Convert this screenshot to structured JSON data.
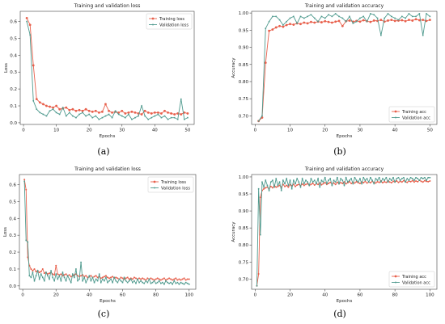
{
  "colors": {
    "training": "#e8604c",
    "validation": "#4f9a8e",
    "axis": "#444444",
    "text": "#222222"
  },
  "chart_data": [
    {
      "type": "line",
      "caption": "(a)",
      "title": "Training and validation loss",
      "xlabel": "Epochs",
      "ylabel": "Loss",
      "xlim": [
        -1,
        52
      ],
      "ylim": [
        -0.01,
        0.66
      ],
      "xticks": [
        0,
        10,
        20,
        30,
        40,
        50
      ],
      "yticks": [
        0.0,
        0.1,
        0.2,
        0.3,
        0.4,
        0.5,
        0.6
      ],
      "ytick_labels": [
        "0.0",
        "0.1",
        "0.2",
        "0.3",
        "0.4",
        "0.5",
        "0.6"
      ],
      "legend_loc": "top-right",
      "x": [
        1,
        2,
        3,
        4,
        5,
        6,
        7,
        8,
        9,
        10,
        11,
        12,
        13,
        14,
        15,
        16,
        17,
        18,
        19,
        20,
        21,
        22,
        23,
        24,
        25,
        26,
        27,
        28,
        29,
        30,
        31,
        32,
        33,
        34,
        35,
        36,
        37,
        38,
        39,
        40,
        41,
        42,
        43,
        44,
        45,
        46,
        47,
        48,
        49,
        50
      ],
      "series": [
        {
          "name": "Training loss",
          "values": [
            0.62,
            0.58,
            0.34,
            0.14,
            0.12,
            0.11,
            0.1,
            0.095,
            0.09,
            0.1,
            0.08,
            0.085,
            0.09,
            0.075,
            0.08,
            0.07,
            0.075,
            0.07,
            0.08,
            0.07,
            0.065,
            0.07,
            0.06,
            0.065,
            0.11,
            0.07,
            0.06,
            0.065,
            0.06,
            0.07,
            0.055,
            0.06,
            0.065,
            0.06,
            0.055,
            0.05,
            0.07,
            0.06,
            0.055,
            0.06,
            0.06,
            0.055,
            0.07,
            0.06,
            0.055,
            0.05,
            0.055,
            0.05,
            0.06,
            0.055
          ]
        },
        {
          "name": "Validation loss",
          "values": [
            0.6,
            0.52,
            0.13,
            0.08,
            0.06,
            0.05,
            0.04,
            0.07,
            0.08,
            0.06,
            0.05,
            0.09,
            0.04,
            0.06,
            0.04,
            0.03,
            0.05,
            0.06,
            0.04,
            0.05,
            0.03,
            0.04,
            0.02,
            0.03,
            0.04,
            0.05,
            0.03,
            0.07,
            0.05,
            0.04,
            0.03,
            0.05,
            0.02,
            0.03,
            0.04,
            0.1,
            0.04,
            0.02,
            0.03,
            0.04,
            0.05,
            0.03,
            0.04,
            0.02,
            0.03,
            0.03,
            0.02,
            0.14,
            0.02,
            0.03
          ]
        }
      ]
    },
    {
      "type": "line",
      "caption": "(b)",
      "title": "Training and validation accuracy",
      "xlabel": "Epochs",
      "ylabel": "Accuracy",
      "xlim": [
        -1,
        52
      ],
      "ylim": [
        0.675,
        1.005
      ],
      "xticks": [
        0,
        10,
        20,
        30,
        40,
        50
      ],
      "yticks": [
        0.7,
        0.75,
        0.8,
        0.85,
        0.9,
        0.95,
        1.0
      ],
      "ytick_labels": [
        "0.70",
        "0.75",
        "0.80",
        "0.85",
        "0.90",
        "0.95",
        "1.00"
      ],
      "legend_loc": "bottom-right",
      "x": [
        1,
        2,
        3,
        4,
        5,
        6,
        7,
        8,
        9,
        10,
        11,
        12,
        13,
        14,
        15,
        16,
        17,
        18,
        19,
        20,
        21,
        22,
        23,
        24,
        25,
        26,
        27,
        28,
        29,
        30,
        31,
        32,
        33,
        34,
        35,
        36,
        37,
        38,
        39,
        40,
        41,
        42,
        43,
        44,
        45,
        46,
        47,
        48,
        49,
        50
      ],
      "series": [
        {
          "name": "Training acc",
          "values": [
            0.685,
            0.695,
            0.855,
            0.948,
            0.952,
            0.958,
            0.962,
            0.96,
            0.965,
            0.968,
            0.966,
            0.97,
            0.968,
            0.972,
            0.97,
            0.974,
            0.972,
            0.975,
            0.973,
            0.976,
            0.974,
            0.972,
            0.975,
            0.977,
            0.962,
            0.976,
            0.978,
            0.975,
            0.977,
            0.975,
            0.979,
            0.976,
            0.974,
            0.978,
            0.977,
            0.98,
            0.975,
            0.978,
            0.98,
            0.977,
            0.978,
            0.979,
            0.976,
            0.98,
            0.978,
            0.982,
            0.979,
            0.98,
            0.977,
            0.98
          ]
        },
        {
          "name": "Validation acc",
          "values": [
            0.685,
            0.7,
            0.955,
            0.975,
            0.99,
            0.99,
            0.98,
            0.965,
            0.975,
            0.985,
            0.99,
            0.97,
            0.99,
            0.985,
            0.99,
            0.995,
            0.985,
            0.975,
            0.99,
            0.985,
            0.995,
            0.99,
            0.998,
            0.99,
            0.985,
            0.975,
            0.99,
            0.97,
            0.975,
            0.985,
            0.99,
            0.975,
            0.998,
            0.995,
            0.985,
            0.935,
            0.985,
            0.998,
            0.99,
            0.985,
            0.98,
            0.99,
            0.985,
            0.998,
            0.99,
            0.99,
            0.998,
            0.935,
            0.998,
            0.99
          ]
        }
      ]
    },
    {
      "type": "line",
      "caption": "(c)",
      "title": "Training and validation loss",
      "xlabel": "Epochs",
      "ylabel": "Loss",
      "xlim": [
        -2,
        104
      ],
      "ylim": [
        -0.02,
        0.66
      ],
      "xticks": [
        0,
        20,
        40,
        60,
        80,
        100
      ],
      "yticks": [
        0.0,
        0.1,
        0.2,
        0.3,
        0.4,
        0.5,
        0.6
      ],
      "ytick_labels": [
        "0.0",
        "0.1",
        "0.2",
        "0.3",
        "0.4",
        "0.5",
        "0.6"
      ],
      "legend_loc": "top-right",
      "x": [
        1,
        2,
        3,
        4,
        5,
        6,
        7,
        8,
        9,
        10,
        11,
        12,
        13,
        14,
        15,
        16,
        17,
        18,
        19,
        20,
        21,
        22,
        23,
        24,
        25,
        26,
        27,
        28,
        29,
        30,
        31,
        32,
        33,
        34,
        35,
        36,
        37,
        38,
        39,
        40,
        41,
        42,
        43,
        44,
        45,
        46,
        47,
        48,
        49,
        50,
        51,
        52,
        53,
        54,
        55,
        56,
        57,
        58,
        59,
        60,
        61,
        62,
        63,
        64,
        65,
        66,
        67,
        68,
        69,
        70,
        71,
        72,
        73,
        74,
        75,
        76,
        77,
        78,
        79,
        80,
        81,
        82,
        83,
        84,
        85,
        86,
        87,
        88,
        89,
        90,
        91,
        92,
        93,
        94,
        95,
        96,
        97,
        98,
        99,
        100
      ],
      "series": [
        {
          "name": "Training loss",
          "values": [
            0.63,
            0.57,
            0.17,
            0.12,
            0.1,
            0.09,
            0.1,
            0.085,
            0.09,
            0.08,
            0.085,
            0.1,
            0.075,
            0.08,
            0.07,
            0.075,
            0.08,
            0.07,
            0.065,
            0.12,
            0.07,
            0.065,
            0.07,
            0.06,
            0.065,
            0.07,
            0.06,
            0.065,
            0.055,
            0.06,
            0.065,
            0.07,
            0.06,
            0.055,
            0.06,
            0.065,
            0.055,
            0.06,
            0.05,
            0.055,
            0.06,
            0.05,
            0.055,
            0.06,
            0.05,
            0.055,
            0.045,
            0.05,
            0.055,
            0.06,
            0.05,
            0.045,
            0.05,
            0.055,
            0.045,
            0.05,
            0.045,
            0.04,
            0.05,
            0.045,
            0.04,
            0.045,
            0.05,
            0.04,
            0.045,
            0.04,
            0.05,
            0.045,
            0.04,
            0.045,
            0.04,
            0.045,
            0.04,
            0.035,
            0.045,
            0.04,
            0.045,
            0.04,
            0.035,
            0.04,
            0.045,
            0.04,
            0.035,
            0.04,
            0.045,
            0.035,
            0.04,
            0.045,
            0.04,
            0.035,
            0.04,
            0.045,
            0.035,
            0.04,
            0.035,
            0.04,
            0.045,
            0.035,
            0.04,
            0.04
          ]
        },
        {
          "name": "Validation loss",
          "values": [
            0.62,
            0.27,
            0.26,
            0.06,
            0.05,
            0.08,
            0.03,
            0.06,
            0.09,
            0.04,
            0.07,
            0.05,
            0.03,
            0.08,
            0.06,
            0.04,
            0.09,
            0.05,
            0.03,
            0.07,
            0.04,
            0.06,
            0.03,
            0.08,
            0.05,
            0.03,
            0.06,
            0.04,
            0.02,
            0.07,
            0.05,
            0.1,
            0.03,
            0.04,
            0.14,
            0.03,
            0.05,
            0.02,
            0.04,
            0.06,
            0.03,
            0.05,
            0.02,
            0.04,
            0.03,
            0.07,
            0.02,
            0.04,
            0.03,
            0.05,
            0.02,
            0.03,
            0.04,
            0.02,
            0.05,
            0.03,
            0.02,
            0.04,
            0.03,
            0.02,
            0.05,
            0.03,
            0.02,
            0.03,
            0.04,
            0.02,
            0.03,
            0.015,
            0.04,
            0.02,
            0.03,
            0.02,
            0.015,
            0.03,
            0.02,
            0.04,
            0.015,
            0.02,
            0.03,
            0.015,
            0.02,
            0.03,
            0.015,
            0.02,
            0.01,
            0.03,
            0.02,
            0.015,
            0.02,
            0.01,
            0.03,
            0.015,
            0.02,
            0.01,
            0.02,
            0.015,
            0.01,
            0.02,
            0.015,
            0.01
          ]
        }
      ]
    },
    {
      "type": "line",
      "caption": "(d)",
      "title": "Training and validation accuracy",
      "xlabel": "Epochs",
      "ylabel": "Accuracy",
      "xlim": [
        -2,
        104
      ],
      "ylim": [
        0.67,
        1.007
      ],
      "xticks": [
        0,
        20,
        40,
        60,
        80,
        100
      ],
      "yticks": [
        0.7,
        0.75,
        0.8,
        0.85,
        0.9,
        0.95,
        1.0
      ],
      "ytick_labels": [
        "0.70",
        "0.75",
        "0.80",
        "0.85",
        "0.90",
        "0.95",
        "1.00"
      ],
      "legend_loc": "bottom-right",
      "x": [
        1,
        2,
        3,
        4,
        5,
        6,
        7,
        8,
        9,
        10,
        11,
        12,
        13,
        14,
        15,
        16,
        17,
        18,
        19,
        20,
        21,
        22,
        23,
        24,
        25,
        26,
        27,
        28,
        29,
        30,
        31,
        32,
        33,
        34,
        35,
        36,
        37,
        38,
        39,
        40,
        41,
        42,
        43,
        44,
        45,
        46,
        47,
        48,
        49,
        50,
        51,
        52,
        53,
        54,
        55,
        56,
        57,
        58,
        59,
        60,
        61,
        62,
        63,
        64,
        65,
        66,
        67,
        68,
        69,
        70,
        71,
        72,
        73,
        74,
        75,
        76,
        77,
        78,
        79,
        80,
        81,
        82,
        83,
        84,
        85,
        86,
        87,
        88,
        89,
        90,
        91,
        92,
        93,
        94,
        95,
        96,
        97,
        98,
        99,
        100
      ],
      "series": [
        {
          "name": "Training acc",
          "values": [
            0.68,
            0.715,
            0.94,
            0.96,
            0.965,
            0.968,
            0.97,
            0.965,
            0.972,
            0.968,
            0.975,
            0.97,
            0.972,
            0.975,
            0.97,
            0.978,
            0.972,
            0.975,
            0.97,
            0.977,
            0.974,
            0.978,
            0.972,
            0.976,
            0.978,
            0.974,
            0.979,
            0.975,
            0.978,
            0.98,
            0.975,
            0.978,
            0.981,
            0.976,
            0.98,
            0.978,
            0.982,
            0.977,
            0.98,
            0.983,
            0.978,
            0.981,
            0.984,
            0.979,
            0.982,
            0.978,
            0.984,
            0.98,
            0.983,
            0.981,
            0.985,
            0.98,
            0.983,
            0.986,
            0.981,
            0.984,
            0.982,
            0.986,
            0.983,
            0.981,
            0.985,
            0.983,
            0.987,
            0.982,
            0.985,
            0.983,
            0.987,
            0.984,
            0.982,
            0.986,
            0.984,
            0.988,
            0.983,
            0.986,
            0.984,
            0.988,
            0.985,
            0.983,
            0.987,
            0.985,
            0.988,
            0.984,
            0.987,
            0.985,
            0.989,
            0.986,
            0.984,
            0.988,
            0.986,
            0.989,
            0.985,
            0.988,
            0.986,
            0.99,
            0.987,
            0.985,
            0.989,
            0.987,
            0.986,
            0.988
          ]
        },
        {
          "name": "Validation acc",
          "values": [
            0.68,
            0.965,
            0.83,
            0.985,
            0.97,
            0.99,
            0.975,
            0.96,
            0.985,
            0.99,
            0.97,
            0.995,
            0.975,
            0.985,
            0.96,
            0.99,
            0.98,
            0.995,
            0.975,
            0.99,
            0.965,
            0.99,
            0.98,
            0.995,
            0.985,
            0.97,
            0.995,
            0.98,
            0.99,
            0.985,
            0.975,
            0.995,
            0.985,
            0.99,
            0.98,
            0.995,
            0.97,
            0.99,
            0.985,
            0.998,
            0.98,
            0.99,
            0.995,
            0.975,
            0.99,
            0.985,
            0.998,
            0.98,
            0.995,
            0.99,
            0.975,
            0.998,
            0.985,
            0.99,
            0.995,
            0.98,
            0.998,
            0.99,
            0.985,
            0.995,
            0.98,
            0.998,
            0.99,
            0.995,
            0.985,
            0.998,
            0.99,
            0.98,
            0.995,
            0.99,
            0.998,
            0.985,
            0.995,
            0.99,
            0.998,
            0.985,
            0.995,
            0.99,
            0.998,
            0.985,
            0.995,
            0.998,
            0.99,
            0.995,
            0.998,
            0.985,
            0.995,
            0.99,
            0.998,
            0.995,
            0.99,
            0.998,
            0.995,
            0.99,
            0.998,
            0.995,
            0.998,
            0.99,
            0.998,
            0.998
          ]
        }
      ]
    }
  ]
}
